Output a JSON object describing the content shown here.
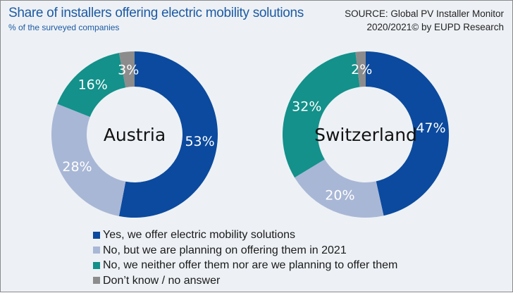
{
  "header": {
    "title": "Share of installers offering electric mobility solutions",
    "subtitle": "% of the surveyed companies",
    "source_line1": "SOURCE: Global PV Installer Monitor",
    "source_line2": "2020/2021© by EUPD Research"
  },
  "chart_data": [
    {
      "type": "pie",
      "variant": "donut",
      "center_label": "Austria",
      "categories": [
        "Yes, we offer electric mobility solutions",
        "No, but we are planning on offering them in 2021",
        "No, we neither offer them nor are we planning to offer them",
        "Don’t know / no answer"
      ],
      "values": [
        53,
        28,
        16,
        3
      ],
      "labels": [
        "53%",
        "28%",
        "16%",
        "3%"
      ]
    },
    {
      "type": "pie",
      "variant": "donut",
      "center_label": "Switzerland",
      "categories": [
        "Yes, we offer electric mobility solutions",
        "No, but we are planning on offering them in 2021",
        "No, we neither offer them nor are we planning to offer them",
        "Don’t know / no answer"
      ],
      "values": [
        47,
        20,
        32,
        2
      ],
      "labels": [
        "47%",
        "20%",
        "32%",
        "2%"
      ]
    }
  ],
  "legend": [
    {
      "label": "Yes, we offer electric mobility solutions",
      "color": "#0b4a9e"
    },
    {
      "label": "No, but we are planning on offering them in 2021",
      "color": "#a9b7d6"
    },
    {
      "label": "No, we neither offer them nor are we planning to offer them",
      "color": "#13918a"
    },
    {
      "label": "Don’t know / no answer",
      "color": "#8c8c8c"
    }
  ]
}
